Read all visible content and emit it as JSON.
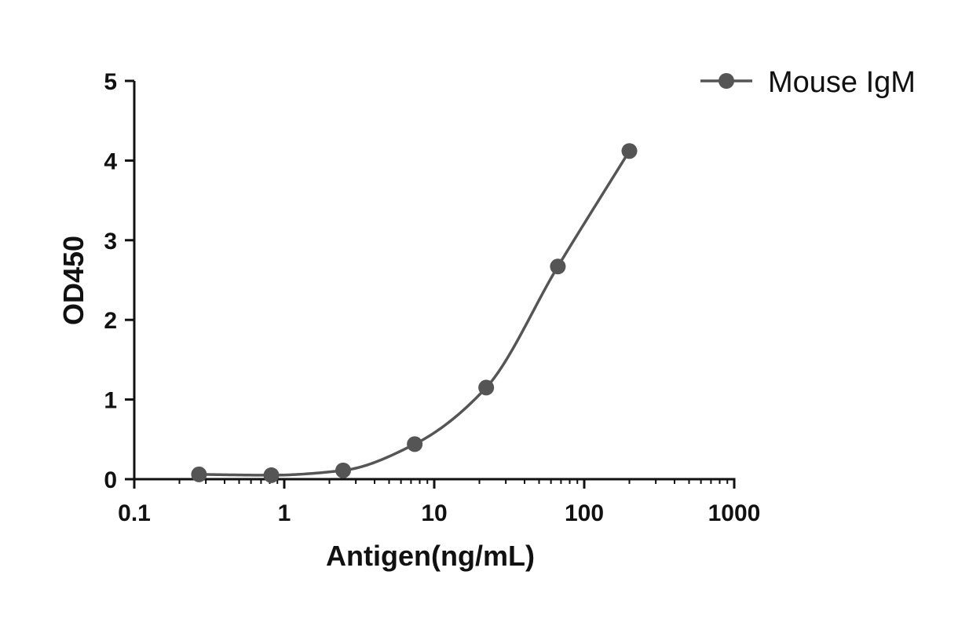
{
  "chart_data": {
    "type": "scatter",
    "title": "",
    "xlabel": "Antigen(ng/mL)",
    "ylabel": "OD450",
    "xscale": "log",
    "xlim": [
      0.1,
      1000
    ],
    "ylim": [
      0,
      5
    ],
    "x_ticks": [
      "0.1",
      "1",
      "10",
      "100",
      "1000"
    ],
    "y_ticks": [
      "0",
      "1",
      "2",
      "3",
      "4",
      "5"
    ],
    "grid": false,
    "legend_position": "top-right",
    "series": [
      {
        "name": "Mouse IgM",
        "color": "#555555",
        "marker": "circle",
        "fit_line": "sigmoidal",
        "x": [
          0.27,
          0.82,
          2.47,
          7.41,
          22.2,
          66.7,
          200
        ],
        "y": [
          0.06,
          0.05,
          0.11,
          0.44,
          1.15,
          2.67,
          4.12
        ]
      }
    ]
  }
}
